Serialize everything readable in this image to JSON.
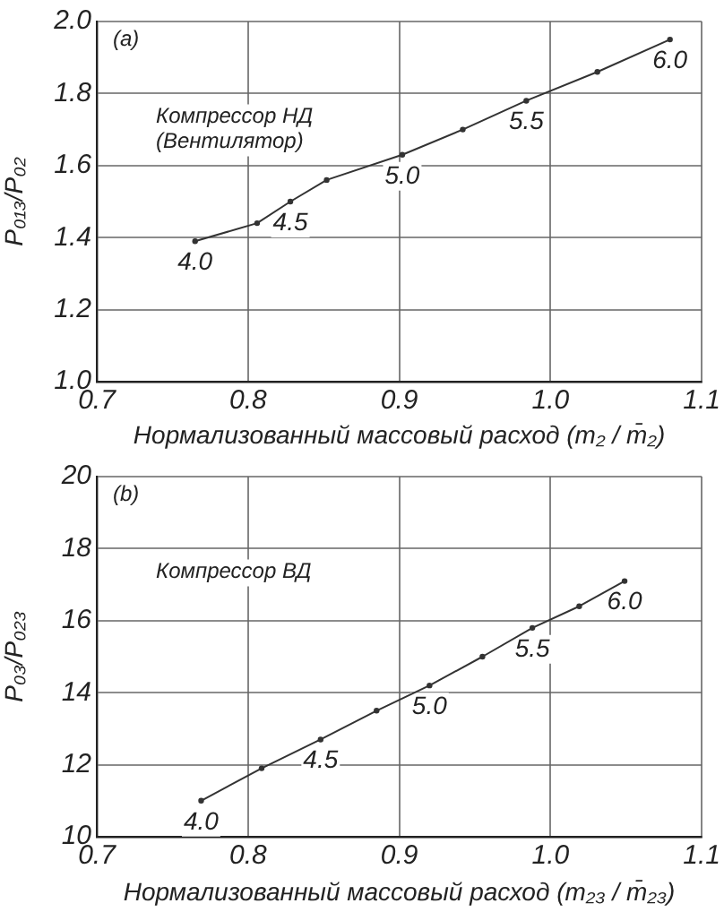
{
  "chart_data": [
    {
      "type": "line",
      "xlabel": "Нормализованный массовый расход (m₂ / m̄₂)",
      "ylabel": "P₀₁₃/P₀₂",
      "annotations": [
        "(a)",
        "Компрессор НД\n(Вентилятор)",
        {
          "text": "4.0",
          "x": 0.765,
          "y": 1.39
        },
        {
          "text": "4.5",
          "x": 0.828,
          "y": 1.5
        },
        {
          "text": "5.0",
          "x": 0.902,
          "y": 1.63
        },
        {
          "text": "5.5",
          "x": 0.984,
          "y": 1.78
        },
        {
          "text": "6.0",
          "x": 1.079,
          "y": 1.95
        }
      ],
      "x": [
        0.765,
        0.806,
        0.828,
        0.852,
        0.902,
        0.942,
        0.984,
        1.031,
        1.079
      ],
      "values": [
        1.39,
        1.44,
        1.5,
        1.56,
        1.63,
        1.7,
        1.78,
        1.86,
        1.95
      ],
      "color": "#333333",
      "xlim": [
        0.7,
        1.1
      ],
      "xticks": [
        0.7,
        0.8,
        0.9,
        {
          "value": 1,
          "label": "1.0"
        },
        1.1
      ],
      "ylim": [
        1,
        2
      ],
      "yticks": [
        {
          "value": 1,
          "label": "1.0"
        },
        1.2,
        1.4,
        1.6,
        1.8,
        {
          "value": 2,
          "label": "2.0"
        }
      ],
      "grid": true,
      "marker": "circle",
      "line_style": "solid"
    },
    {
      "type": "line",
      "xlabel": "Нормализованный массовый расход (m₂₃ / m̄₂₃)",
      "ylabel": "P₀₃/P₀₂₃",
      "annotations": [
        "(b)",
        "Компрессор ВД",
        {
          "text": "4.0",
          "x": 0.769,
          "y": 11
        },
        {
          "text": "4.5",
          "x": 0.848,
          "y": 12.7
        },
        {
          "text": "5.0",
          "x": 0.92,
          "y": 14.2
        },
        {
          "text": "5.5",
          "x": 0.988,
          "y": 15.8
        },
        {
          "text": "6.0",
          "x": 1.049,
          "y": 17.1
        }
      ],
      "x": [
        0.769,
        0.809,
        0.848,
        0.885,
        0.92,
        0.955,
        0.988,
        1.019,
        1.049
      ],
      "values": [
        11,
        11.9,
        12.7,
        13.5,
        14.2,
        15,
        15.8,
        16.4,
        17.1
      ],
      "color": "#333333",
      "xlim": [
        0.7,
        1.1
      ],
      "xticks": [
        0.7,
        0.8,
        0.9,
        {
          "value": 1,
          "label": "1.0"
        },
        1.1
      ],
      "ylim": [
        10,
        20
      ],
      "yticks": [
        10,
        12,
        14,
        16,
        18,
        20
      ],
      "grid": true,
      "marker": "circle",
      "line_style": "solid"
    }
  ]
}
